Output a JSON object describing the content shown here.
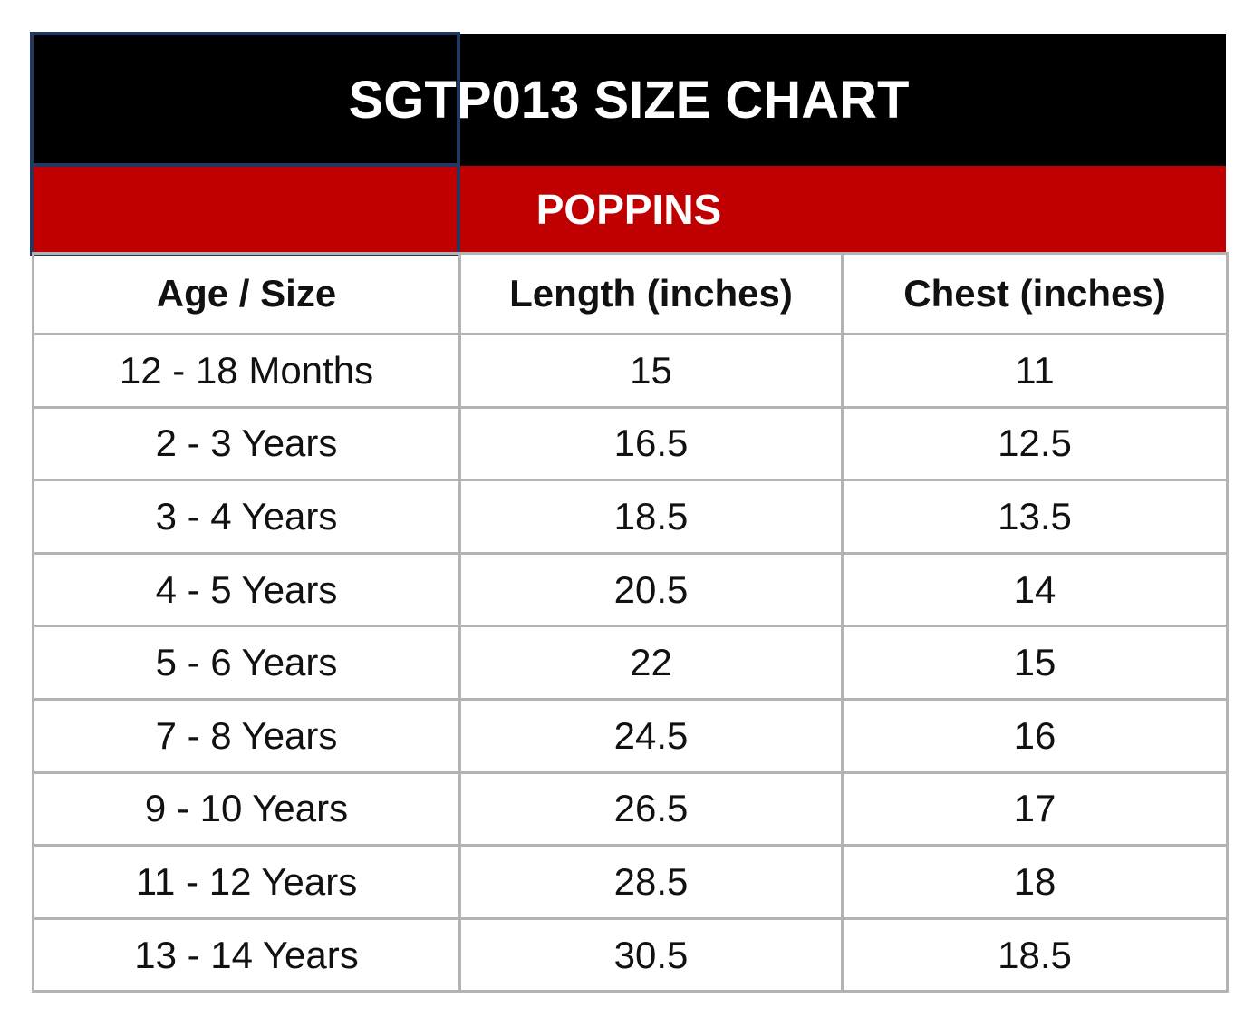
{
  "table": {
    "title": "SGTP013 SIZE CHART",
    "subtitle": "POPPINS",
    "header": [
      "Age / Size",
      "Length (inches)",
      "Chest (inches)"
    ],
    "rows": [
      [
        "12 - 18 Months",
        15,
        11
      ],
      [
        "2 - 3 Years",
        16.5,
        12.5
      ],
      [
        "3 - 4 Years",
        18.5,
        13.5
      ],
      [
        "4 - 5 Years",
        20.5,
        14
      ],
      [
        "5 - 6 Years",
        22,
        15
      ],
      [
        "7 - 8 Years",
        24.5,
        16
      ],
      [
        "9 - 10 Years",
        26.5,
        17
      ],
      [
        "11 - 12 Years",
        28.5,
        18
      ],
      [
        "13 - 14 Years",
        30.5,
        18.5
      ]
    ]
  }
}
